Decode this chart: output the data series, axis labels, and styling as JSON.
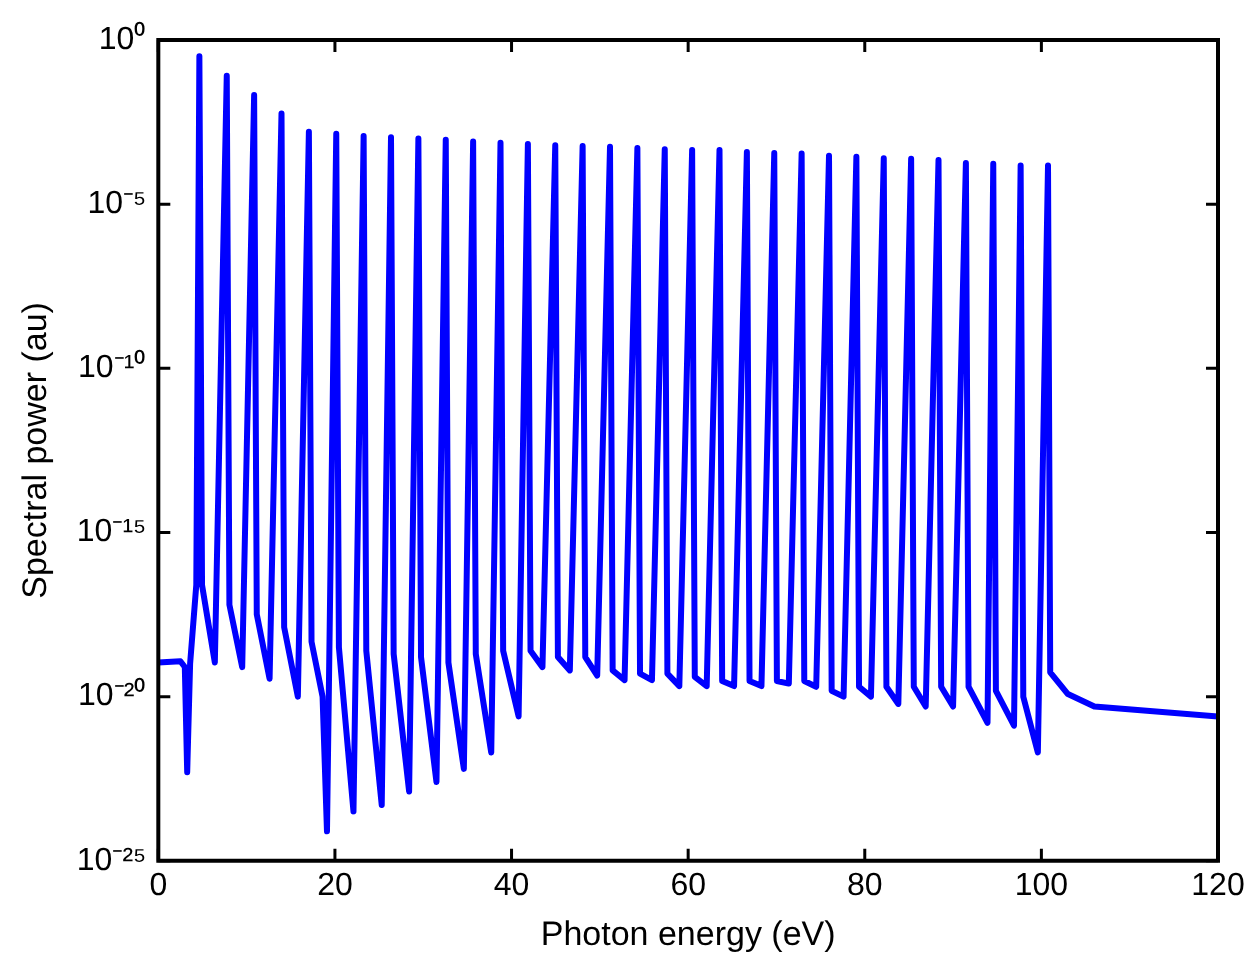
{
  "chart_data": {
    "type": "line",
    "xlabel": "Photon energy (eV)",
    "ylabel": "Spectral power (au)",
    "log": "y",
    "grid": false,
    "legend": false,
    "marker": "none",
    "line_style": "solid",
    "xlim": [
      0,
      120
    ],
    "xticks": [
      0,
      20,
      40,
      60,
      80,
      100,
      120
    ],
    "ylim": [
      1e-25,
      1
    ],
    "yticks": [
      {
        "value": 1e-25,
        "label": "10⁻²⁵"
      },
      {
        "value": 1e-20,
        "label": "10⁻²⁰"
      },
      {
        "value": 1e-15,
        "label": "10⁻¹⁵"
      },
      {
        "value": 1e-10,
        "label": "10⁻¹⁰"
      },
      {
        "value": 1e-05,
        "label": "10⁻⁵"
      },
      {
        "value": 1,
        "label": "10⁰"
      }
    ],
    "series": [
      {
        "color": "#0000ff",
        "x": [
          0,
          2.5,
          3.0,
          3.27,
          3.6,
          4.3,
          4.65,
          4.95,
          6.4,
          7.75,
          8.05,
          9.5,
          10.85,
          11.15,
          12.6,
          13.95,
          14.25,
          15.8,
          17.05,
          17.35,
          18.6,
          19.1,
          20.15,
          20.45,
          22.1,
          23.25,
          23.55,
          25.3,
          26.35,
          26.65,
          28.4,
          29.45,
          29.75,
          31.5,
          32.55,
          32.85,
          34.6,
          35.65,
          35.95,
          37.7,
          38.75,
          39.05,
          40.8,
          41.85,
          42.15,
          43.5,
          44.95,
          45.25,
          46.6,
          48.05,
          48.35,
          49.7,
          51.15,
          51.45,
          52.8,
          54.25,
          54.55,
          55.9,
          57.35,
          57.65,
          59.0,
          60.45,
          60.75,
          62.1,
          63.55,
          63.85,
          65.2,
          66.65,
          66.95,
          68.3,
          69.75,
          70.05,
          71.4,
          72.85,
          73.15,
          74.5,
          75.95,
          76.25,
          77.6,
          79.05,
          79.35,
          80.7,
          82.15,
          82.45,
          83.8,
          85.25,
          85.55,
          86.9,
          88.35,
          88.65,
          90.0,
          91.45,
          91.75,
          93.9,
          94.55,
          94.85,
          96.9,
          97.65,
          97.95,
          99.6,
          100.75,
          101.0,
          103,
          106,
          120
        ],
        "values": [
          1.1e-19,
          1.2e-19,
          8e-20,
          5e-23,
          1e-19,
          2.5e-17,
          0.32,
          2.5e-17,
          1.1e-19,
          0.081,
          6.3e-18,
          7.9e-20,
          0.021,
          3.2e-18,
          3.5e-20,
          0.0058,
          1.3e-18,
          1e-20,
          0.0016,
          4.7e-19,
          1e-20,
          7.9e-25,
          0.0014,
          3.2e-19,
          3.2e-24,
          0.0012,
          2.5e-19,
          5e-24,
          0.0011,
          2e-19,
          1.3e-23,
          0.001,
          1.6e-19,
          2.5e-23,
          0.00091,
          1.1e-19,
          6.3e-23,
          0.00081,
          2e-19,
          2e-22,
          0.00074,
          2.5e-19,
          2.5e-21,
          0.00068,
          2.5e-19,
          7.9e-20,
          0.00062,
          1.6e-19,
          6.3e-20,
          0.00059,
          1.6e-19,
          4.4e-20,
          0.00056,
          6.3e-20,
          3.2e-20,
          0.00051,
          5e-20,
          3.2e-20,
          0.00047,
          5e-20,
          2.1e-20,
          0.00045,
          4e-20,
          2.1e-20,
          0.00045,
          3e-20,
          2.1e-20,
          0.00039,
          3e-20,
          2.1e-20,
          0.00036,
          3e-20,
          2.5e-20,
          0.00035,
          3e-20,
          2e-20,
          0.0003,
          1.5e-20,
          1e-20,
          0.00028,
          2e-20,
          1e-20,
          0.00025,
          2e-20,
          6e-21,
          0.00024,
          2e-20,
          5e-21,
          0.00022,
          2e-20,
          5e-21,
          0.00018,
          2e-20,
          1.6e-21,
          0.00017,
          1.5e-20,
          1.3e-21,
          0.00015,
          1e-20,
          2e-22,
          0.00015,
          5.5e-20,
          1.2e-20,
          5e-21,
          2.5e-21
        ]
      }
    ]
  }
}
